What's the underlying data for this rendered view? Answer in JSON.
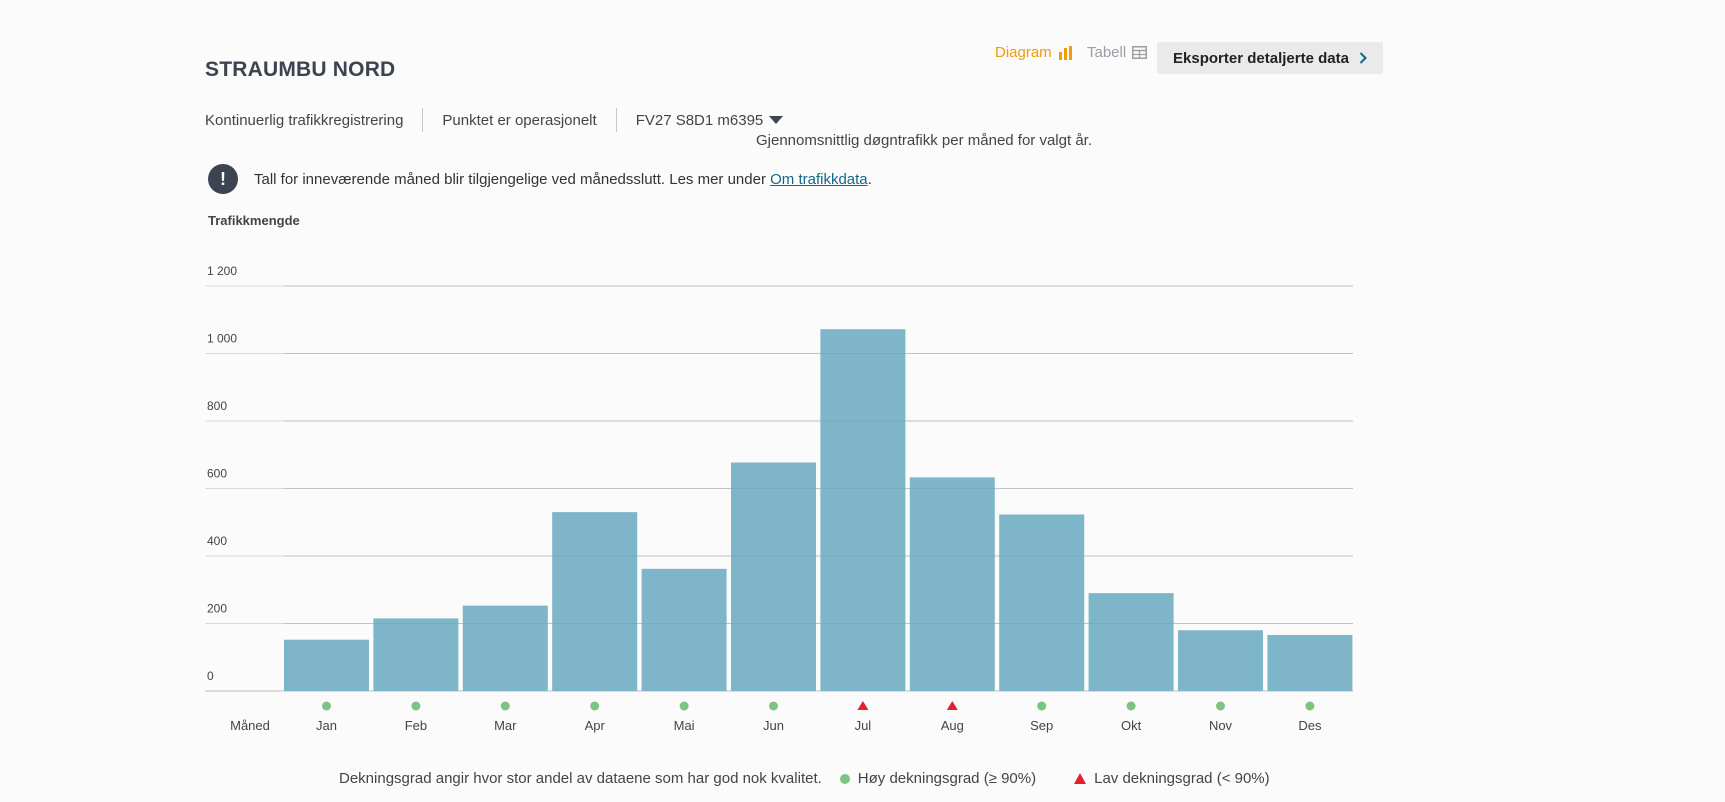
{
  "header": {
    "title": "STRAUMBU NORD",
    "diagram_label": "Diagram",
    "tabell_label": "Tabell",
    "export_label": "Eksporter detaljerte data"
  },
  "meta": {
    "registration": "Kontinuerlig trafikkregistrering",
    "status": "Punktet er operasjonelt",
    "road_ref": "FV27 S8D1 m6395"
  },
  "subtitle": "Gjennomsnittlig døgntrafikk per måned for valgt år.",
  "notice": {
    "text": "Tall for inneværende måned blir tilgjengelige ved månedsslutt. Les mer under ",
    "link": "Om trafikkdata",
    "end": "."
  },
  "legend": {
    "text": "Dekningsgrad angir hvor stor andel av dataene som har god nok kvalitet.",
    "high": "Høy dekningsgrad (≥ 90%)",
    "low": "Lav dekningsgrad (< 90%)"
  },
  "colors": {
    "bar": "#7fb5c8",
    "high": "#7dc383",
    "low": "#e4202f",
    "accent": "#f39a0f",
    "grid": "#d9d9d9"
  },
  "chart_data": {
    "type": "bar",
    "ylabel": "Trafikkmengde",
    "xlabel": "Måned",
    "categories": [
      "Jan",
      "Feb",
      "Mar",
      "Apr",
      "Mai",
      "Jun",
      "Jul",
      "Aug",
      "Sep",
      "Okt",
      "Nov",
      "Des"
    ],
    "values": [
      152,
      215,
      253,
      530,
      362,
      677,
      1072,
      633,
      523,
      290,
      180,
      166
    ],
    "coverage": [
      "high",
      "high",
      "high",
      "high",
      "high",
      "high",
      "low",
      "low",
      "high",
      "high",
      "high",
      "high"
    ],
    "ylim": [
      0,
      1200
    ],
    "yticks": [
      0,
      200,
      400,
      600,
      800,
      1000,
      1200
    ],
    "ytick_labels": [
      "0",
      "200",
      "400",
      "600",
      "800",
      "1 000",
      "1 200"
    ],
    "grid": true
  }
}
